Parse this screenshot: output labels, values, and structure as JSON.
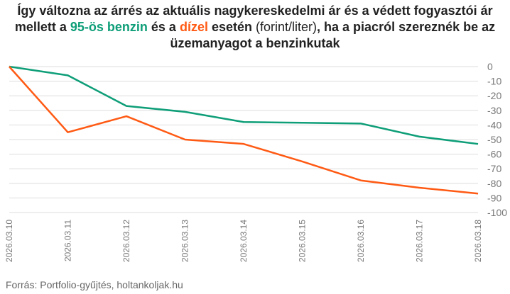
{
  "title": {
    "p1": "Így változna az árrés az aktuális nagykereskedelmi ár és a védett fogyasztói ár mellett a ",
    "benzin": "95-ös benzin",
    "p2": " és a ",
    "dizel": "dízel",
    "p3": " esetén ",
    "unit": "(forint/liter)",
    "p4": ", ha a piacról szereznék be az üzemanyagot a benzinkutak"
  },
  "source": "Forrás: Portfolio-gyűjtés, holtankoljak.hu",
  "colors": {
    "benzin": "#0e9e78",
    "dizel": "#ff5a14",
    "grid": "#dddddd"
  },
  "chart_data": {
    "type": "line",
    "title": "Így változna az árrés az aktuális nagykereskedelmi ár és a védett fogyasztói ár mellett a 95-ös benzin és a dízel esetén (forint/liter), ha a piacról szereznék be az üzemanyagot a benzinkutak",
    "x": [
      "2026.03.10",
      "2026.03.11",
      "2026.03.12",
      "2026.03.13",
      "2026.03.14",
      "2026.03.15",
      "2026.03.16",
      "2026.03.17",
      "2026.03.18"
    ],
    "series": [
      {
        "name": "95-ös benzin",
        "values": [
          0,
          -6,
          -27,
          -31,
          -38,
          -38.5,
          -39,
          -48,
          -53
        ]
      },
      {
        "name": "dízel",
        "values": [
          0,
          -45,
          -34,
          -50,
          -53,
          -65,
          -78,
          -83,
          -87
        ]
      }
    ],
    "yticks": [
      0,
      -10,
      -20,
      -30,
      -40,
      -50,
      -60,
      -70,
      -80,
      -90,
      -100
    ],
    "ylim": [
      -100,
      0
    ],
    "grid": true,
    "yaxis_side": "right",
    "legend": "none"
  }
}
